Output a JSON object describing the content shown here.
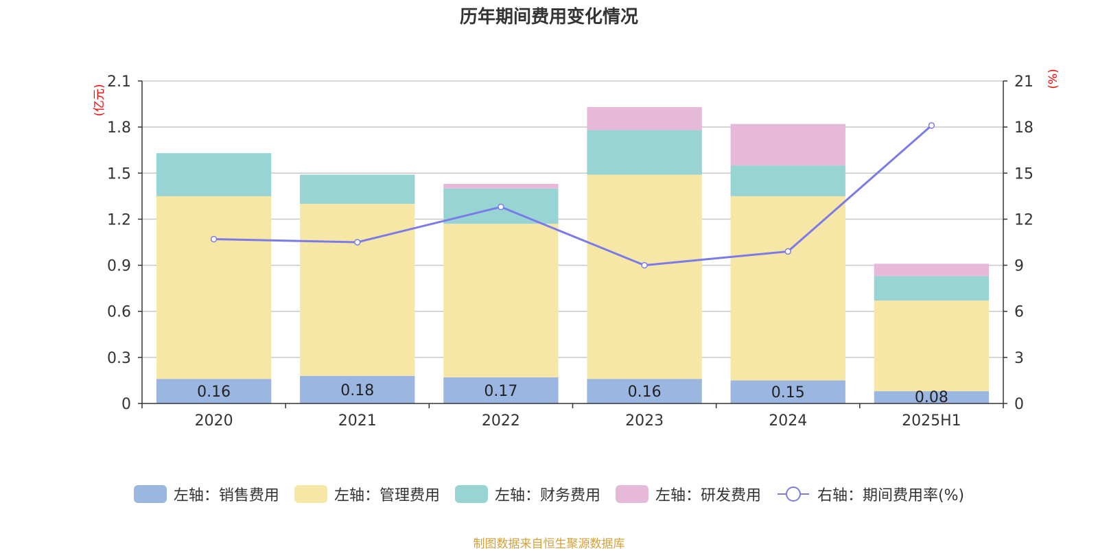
{
  "title": "历年期间费用变化情况",
  "source": "制图数据来自恒生聚源数据库",
  "chart_data": {
    "type": "bar",
    "stacked": true,
    "categories": [
      "2020",
      "2021",
      "2022",
      "2023",
      "2024",
      "2025H1"
    ],
    "left_axis": {
      "unit": "(亿元)",
      "ylim": [
        0,
        2.1
      ],
      "ticks": [
        "0",
        "0.3",
        "0.6",
        "0.9",
        "1.2",
        "1.5",
        "1.8",
        "2.1"
      ]
    },
    "right_axis": {
      "unit": "(%)",
      "ylim": [
        0,
        21
      ],
      "ticks": [
        "0",
        "3",
        "6",
        "9",
        "12",
        "15",
        "18",
        "21"
      ]
    },
    "grid": true,
    "legend_position": "bottom",
    "series": [
      {
        "name": "左轴：销售费用",
        "axis": "left",
        "color": "#9bb6e0",
        "values": [
          0.16,
          0.18,
          0.17,
          0.16,
          0.15,
          0.08
        ],
        "labels": [
          "0.16",
          "0.18",
          "0.17",
          "0.16",
          "0.15",
          "0.08"
        ]
      },
      {
        "name": "左轴：管理费用",
        "axis": "left",
        "color": "#f7e7a7",
        "values": [
          1.19,
          1.12,
          1.0,
          1.33,
          1.2,
          0.59
        ]
      },
      {
        "name": "左轴：财务费用",
        "axis": "left",
        "color": "#98d4d4",
        "values": [
          0.28,
          0.19,
          0.23,
          0.29,
          0.2,
          0.16
        ]
      },
      {
        "name": "左轴：研发费用",
        "axis": "left",
        "color": "#e7b9d8",
        "values": [
          0.0,
          0.0,
          0.03,
          0.15,
          0.27,
          0.08
        ]
      },
      {
        "name": "右轴：期间费用率(%)",
        "axis": "right",
        "type": "line",
        "color": "#7b7be8",
        "values": [
          10.7,
          10.5,
          12.8,
          9.0,
          9.9,
          18.1
        ]
      }
    ]
  }
}
